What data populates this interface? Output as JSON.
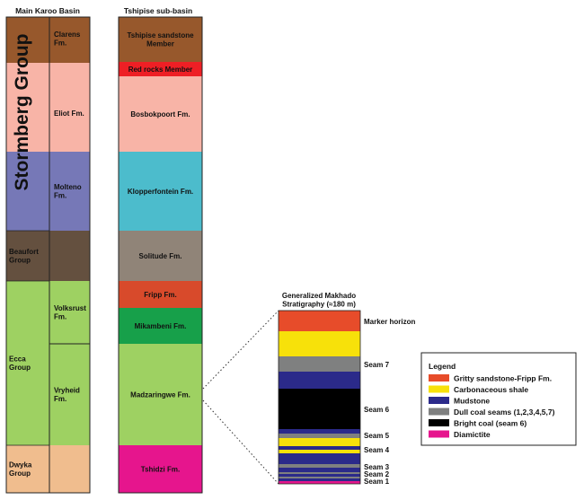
{
  "main_karoo": {
    "heading": "Main Karoo Basin",
    "supergroup_label": "Stormberg Group",
    "groups": [
      {
        "lines": [
          "Beaufort",
          "Group"
        ],
        "color": "#64503f"
      },
      {
        "lines": [
          "Ecca",
          "Group"
        ],
        "color": "#9ed162"
      },
      {
        "lines": [
          "Dwyka",
          "Group"
        ],
        "color": "#f0bd8e"
      }
    ],
    "formations": [
      {
        "lines": [
          "Clarens",
          "Fm."
        ],
        "color": "#97582c"
      },
      {
        "lines": [
          "Eliot Fm."
        ],
        "color": "#f8b4a7"
      },
      {
        "lines": [
          "Molteno",
          "Fm."
        ],
        "color": "#7678b7"
      },
      {
        "lines": [],
        "color": "#64503f"
      },
      {
        "lines": [
          "Volksrust",
          "Fm."
        ],
        "color": "#9ed162"
      },
      {
        "lines": [
          "Vryheid",
          "Fm."
        ],
        "color": "#9ed162"
      },
      {
        "lines": [],
        "color": "#f0bd8e"
      }
    ]
  },
  "tshipise": {
    "heading": "Tshipise sub-basin",
    "units": [
      {
        "lines": [
          "Tshipise sandstone",
          "Member"
        ],
        "color": "#97582c"
      },
      {
        "lines": [
          "Red rocks Member"
        ],
        "color": "#ee1f25"
      },
      {
        "lines": [
          "Bosbokpoort Fm."
        ],
        "color": "#f8b4a7"
      },
      {
        "lines": [
          "Klopperfontein Fm."
        ],
        "color": "#4cbccc"
      },
      {
        "lines": [
          "Solitude Fm."
        ],
        "color": "#908478"
      },
      {
        "lines": [
          "Fripp Fm."
        ],
        "color": "#d84a2b"
      },
      {
        "lines": [
          "Mikambeni Fm."
        ],
        "color": "#17a04a"
      },
      {
        "lines": [
          "Madzaringwe Fm."
        ],
        "color": "#9ed162"
      },
      {
        "lines": [
          "Tshidzi Fm."
        ],
        "color": "#e6158d"
      }
    ]
  },
  "makhado": {
    "title_lines": [
      "Generalized Makhado",
      "Stratigraphy (≈180 m)"
    ],
    "layers": [
      {
        "color": "#e74c2a"
      },
      {
        "color": "#f7e10a"
      },
      {
        "color": "#7f8080"
      },
      {
        "color": "#2b2a8a"
      },
      {
        "color": "#000000"
      },
      {
        "color": "#2b2a8a"
      },
      {
        "color": "#7f8080"
      },
      {
        "color": "#f7e10a"
      },
      {
        "color": "#2b2a8a"
      },
      {
        "color": "#f7e10a"
      },
      {
        "color": "#2b2a8a"
      },
      {
        "color": "#7f8080"
      },
      {
        "color": "#2b2a8a"
      },
      {
        "color": "#7f8080"
      },
      {
        "color": "#2b2a8a"
      },
      {
        "color": "#7f8080"
      },
      {
        "color": "#2b2a8a"
      },
      {
        "color": "#e6158d"
      }
    ],
    "labels": [
      "Marker horizon",
      "Seam 7",
      "Seam 6",
      "Seam 5",
      "Seam 4",
      "Seam 3",
      "Seam 2",
      "Seam 1"
    ]
  },
  "legend": {
    "title": "Legend",
    "items": [
      {
        "label": "Gritty sandstone-Fripp Fm.",
        "color": "#e74c2a"
      },
      {
        "label": "Carbonaceous shale",
        "color": "#f7e10a"
      },
      {
        "label": "Mudstone",
        "color": "#2b2a8a"
      },
      {
        "label": "Dull coal seams (1,2,3,4,5,7)",
        "color": "#7f8080"
      },
      {
        "label": "Bright coal (seam 6)",
        "color": "#000000"
      },
      {
        "label": "Diamictite",
        "color": "#e6158d"
      }
    ]
  }
}
